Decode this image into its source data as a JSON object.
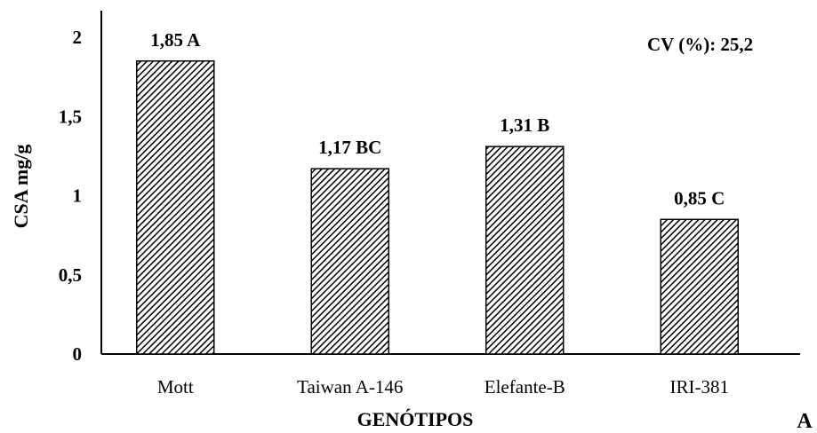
{
  "chart_data": {
    "type": "bar",
    "categories": [
      "Mott",
      "Taiwan A-146",
      "Elefante-B",
      "IRI-381"
    ],
    "values": [
      1.85,
      1.17,
      1.31,
      0.85
    ],
    "data_labels": [
      "1,85 A",
      "1,17 BC",
      "1,31 B",
      "0,85 C"
    ],
    "xlabel": "GENÓTIPOS",
    "ylabel": "CSA mg/g",
    "ylim": [
      0,
      2
    ],
    "yticks": [
      0,
      0.5,
      1,
      1.5,
      2
    ],
    "ytick_labels": [
      "0",
      "0,5",
      "1",
      "1,5",
      "2"
    ],
    "annotation": "CV (%): 25,2",
    "panel_label": "A",
    "bar_fill": "hatched diagonal black/white",
    "grid": false,
    "legend": "none"
  }
}
